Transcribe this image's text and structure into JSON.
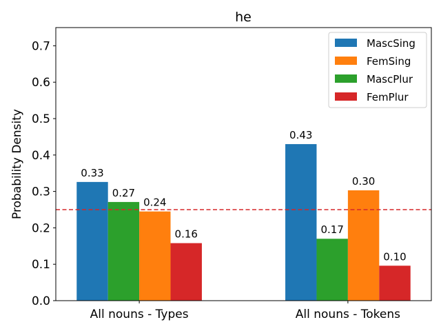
{
  "chart_data": {
    "type": "bar",
    "title": "he",
    "xlabel": "",
    "ylabel": "Probability Density",
    "ylim": [
      0,
      0.75
    ],
    "yticks": [
      0.0,
      0.1,
      0.2,
      0.3,
      0.4,
      0.5,
      0.6,
      0.7
    ],
    "ytick_labels": [
      "0.0",
      "0.1",
      "0.2",
      "0.3",
      "0.4",
      "0.5",
      "0.6",
      "0.7"
    ],
    "categories": [
      "All nouns - Types",
      "All nouns - Tokens"
    ],
    "series": [
      {
        "name": "MascSing",
        "color": "#1f77b4",
        "values": [
          0.326,
          0.43
        ],
        "labels": [
          "0.33",
          "0.43"
        ]
      },
      {
        "name": "FemSing",
        "color": "#ff7f0e",
        "values": [
          0.245,
          0.303
        ],
        "labels": [
          "0.24",
          "0.30"
        ]
      },
      {
        "name": "MascPlur",
        "color": "#2ca02c",
        "values": [
          0.271,
          0.17
        ],
        "labels": [
          "0.27",
          "0.17"
        ]
      },
      {
        "name": "FemPlur",
        "color": "#d62728",
        "values": [
          0.158,
          0.096
        ],
        "labels": [
          "0.16",
          "0.10"
        ]
      }
    ],
    "bar_order": [
      [
        "MascSing",
        "MascPlur",
        "FemSing",
        "FemPlur"
      ],
      [
        "MascSing",
        "MascPlur",
        "FemSing",
        "FemPlur"
      ]
    ],
    "reference_line": {
      "y": 0.25,
      "color": "#d62728",
      "style": "dashed"
    },
    "legend": {
      "placement": "top-right"
    },
    "grid": false
  }
}
